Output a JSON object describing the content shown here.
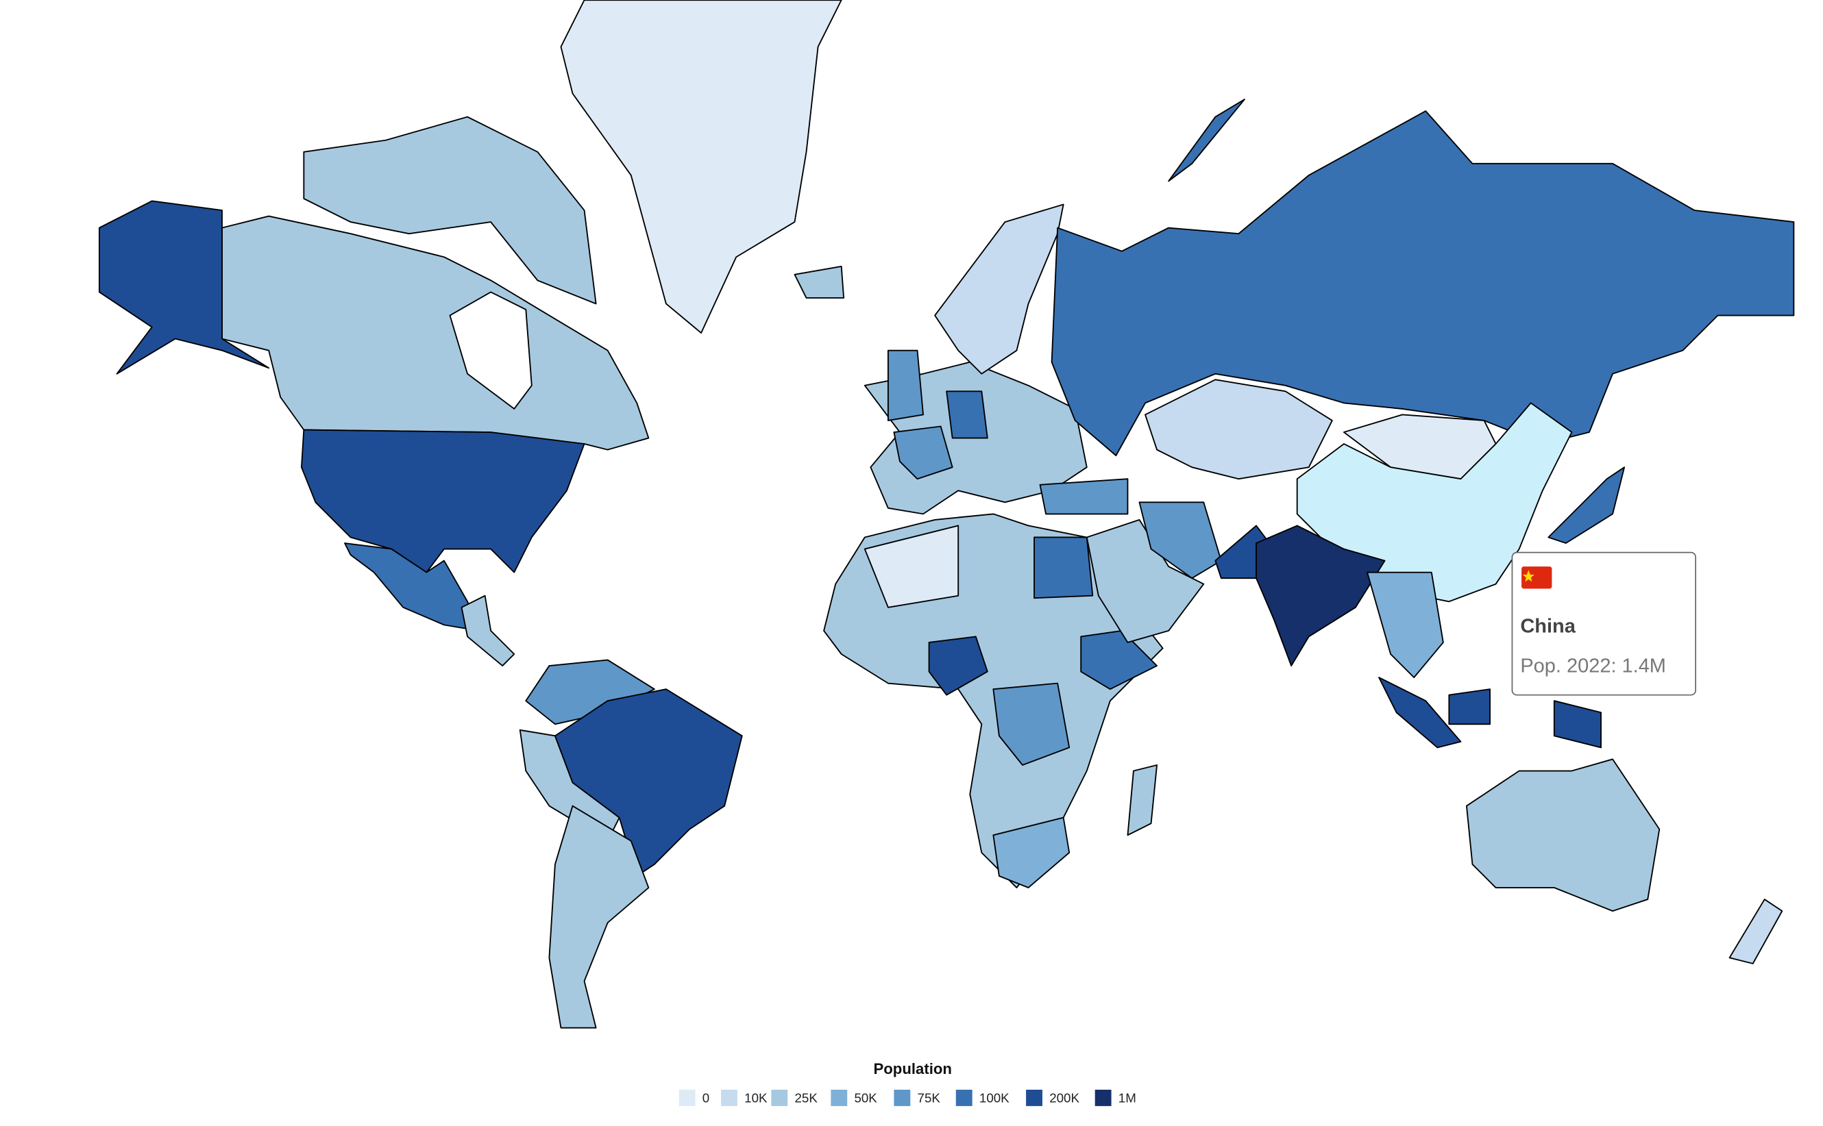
{
  "legend": {
    "title": "Population",
    "items": [
      {
        "label": "0",
        "color": "#deebf7"
      },
      {
        "label": "10K",
        "color": "#c6dbef"
      },
      {
        "label": "25K",
        "color": "#a6c9e0"
      },
      {
        "label": "50K",
        "color": "#7fb0d8"
      },
      {
        "label": "75K",
        "color": "#5f97c9"
      },
      {
        "label": "100K",
        "color": "#3871b2"
      },
      {
        "label": "200K",
        "color": "#1f4d95"
      },
      {
        "label": "1M",
        "color": "#15306a"
      }
    ]
  },
  "tooltip": {
    "country": "China",
    "text": "Pop. 2022: 1.4M",
    "highlight_color": "#ccf0fb"
  }
}
